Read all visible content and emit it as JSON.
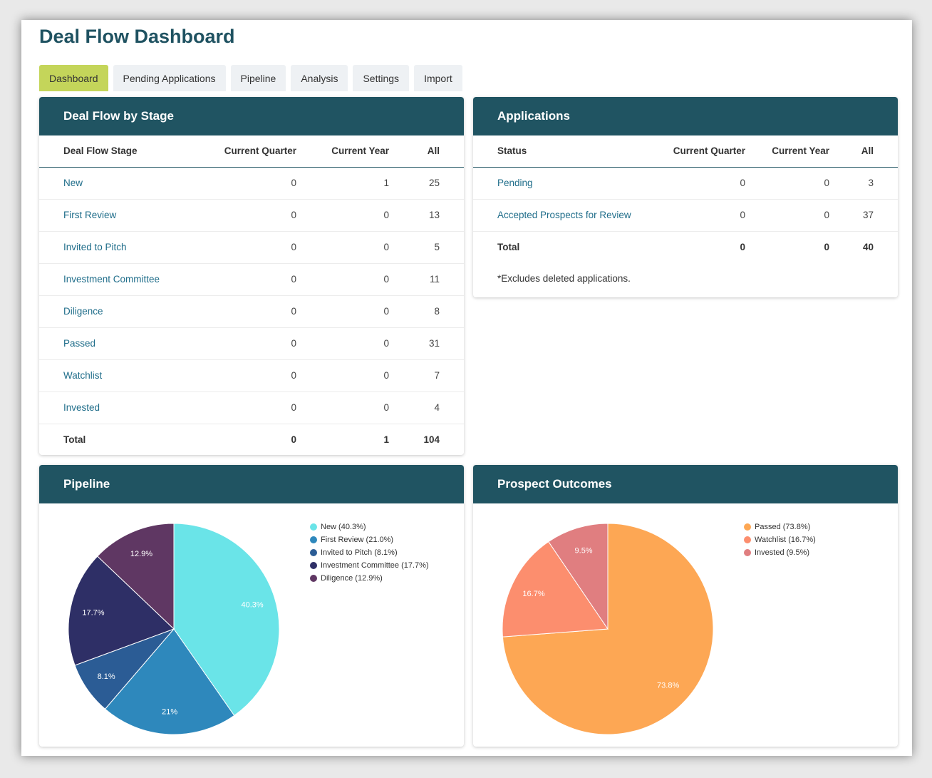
{
  "title": "Deal Flow Dashboard",
  "tabs": [
    {
      "label": "Dashboard",
      "active": true
    },
    {
      "label": "Pending Applications",
      "active": false
    },
    {
      "label": "Pipeline",
      "active": false
    },
    {
      "label": "Analysis",
      "active": false
    },
    {
      "label": "Settings",
      "active": false
    },
    {
      "label": "Import",
      "active": false
    }
  ],
  "stage_table": {
    "title": "Deal Flow by Stage",
    "headers": [
      "Deal Flow Stage",
      "Current Quarter",
      "Current Year",
      "All"
    ],
    "rows": [
      {
        "stage": "New",
        "quarter": "0",
        "year": "1",
        "all": "25"
      },
      {
        "stage": "First Review",
        "quarter": "0",
        "year": "0",
        "all": "13"
      },
      {
        "stage": "Invited to Pitch",
        "quarter": "0",
        "year": "0",
        "all": "5"
      },
      {
        "stage": "Investment Committee",
        "quarter": "0",
        "year": "0",
        "all": "11"
      },
      {
        "stage": "Diligence",
        "quarter": "0",
        "year": "0",
        "all": "8"
      },
      {
        "stage": "Passed",
        "quarter": "0",
        "year": "0",
        "all": "31"
      },
      {
        "stage": "Watchlist",
        "quarter": "0",
        "year": "0",
        "all": "7"
      },
      {
        "stage": "Invested",
        "quarter": "0",
        "year": "0",
        "all": "4"
      }
    ],
    "total": {
      "label": "Total",
      "quarter": "0",
      "year": "1",
      "all": "104"
    }
  },
  "applications": {
    "title": "Applications",
    "headers": [
      "Status",
      "Current Quarter",
      "Current Year",
      "All"
    ],
    "rows": [
      {
        "status": "Pending",
        "quarter": "0",
        "year": "0",
        "all": "3"
      },
      {
        "status": "Accepted Prospects for Review",
        "quarter": "0",
        "year": "0",
        "all": "37"
      }
    ],
    "total": {
      "label": "Total",
      "quarter": "0",
      "year": "0",
      "all": "40"
    },
    "note": "*Excludes deleted applications."
  },
  "chart_data": [
    {
      "type": "pie",
      "title": "Pipeline",
      "categories": [
        "New",
        "First Review",
        "Invited to Pitch",
        "Investment Committee",
        "Diligence"
      ],
      "values": [
        40.3,
        21.0,
        8.1,
        17.7,
        12.9
      ],
      "slice_labels": [
        "40.3%",
        "21%",
        "8.1%",
        "17.7%",
        "12.9%"
      ],
      "legend": [
        "New (40.3%)",
        "First Review (21.0%)",
        "Invited to Pitch (8.1%)",
        "Investment Committee (17.7%)",
        "Diligence (12.9%)"
      ],
      "colors": [
        "#6ae4e8",
        "#2e88bc",
        "#2b5c95",
        "#2e2f66",
        "#5f3763"
      ],
      "legend_position": "top-right"
    },
    {
      "type": "pie",
      "title": "Prospect Outcomes",
      "categories": [
        "Passed",
        "Watchlist",
        "Invested"
      ],
      "values": [
        73.8,
        16.7,
        9.5
      ],
      "slice_labels": [
        "73.8%",
        "16.7%",
        "9.5%"
      ],
      "legend": [
        "Passed (73.8%)",
        "Watchlist (16.7%)",
        "Invested (9.5%)"
      ],
      "colors": [
        "#fda754",
        "#fc8e6e",
        "#e07e80"
      ],
      "legend_position": "top-right"
    }
  ]
}
